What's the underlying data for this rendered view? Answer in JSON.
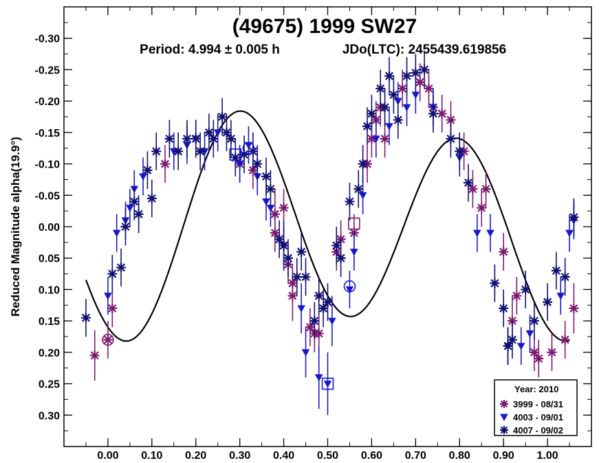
{
  "chart_data": {
    "type": "scatter",
    "title": "(49675) 1999 SW27",
    "subtitle_period": "Period: 4.994 ± 0.005 h",
    "subtitle_epoch": "JDo(LTC): 2455439.619856",
    "xlabel": "",
    "ylabel": "Reduced Magnitude alpha(19.9°)",
    "xlim": [
      -0.1,
      1.1
    ],
    "ylim": [
      0.35,
      -0.35
    ],
    "y_inverted": true,
    "x_ticks": [
      "0.00",
      "0.10",
      "0.20",
      "0.30",
      "0.40",
      "0.50",
      "0.60",
      "0.70",
      "0.80",
      "0.90",
      "1.00"
    ],
    "x_tick_values": [
      0.0,
      0.1,
      0.2,
      0.3,
      0.4,
      0.5,
      0.6,
      0.7,
      0.8,
      0.9,
      1.0
    ],
    "y_ticks": [
      "-0.30",
      "-0.25",
      "-0.20",
      "-0.15",
      "-0.10",
      "-0.05",
      "0.00",
      "0.05",
      "0.10",
      "0.15",
      "0.20",
      "0.25",
      "0.30"
    ],
    "y_tick_values": [
      -0.3,
      -0.25,
      -0.2,
      -0.15,
      -0.1,
      -0.05,
      0.0,
      0.05,
      0.1,
      0.15,
      0.2,
      0.25,
      0.3
    ],
    "grid": false,
    "legend_position": "bottom-right",
    "legend_title": "Year: 2010",
    "fourier_fit": {
      "color": "#000000",
      "mean": 0.0,
      "a1": 0.025,
      "b1": -0.015,
      "a2": 0.135,
      "b2": 0.09
    },
    "series": [
      {
        "name": "3999 - 08/31",
        "marker": "asterisk",
        "color": "#7b1a6e",
        "points": [
          [
            -0.03,
            0.205,
            0.04
          ],
          [
            0.0,
            0.18,
            0.03
          ],
          [
            0.01,
            0.13,
            0.03
          ],
          [
            0.13,
            -0.1,
            0.03
          ],
          [
            0.3,
            -0.1,
            0.03
          ],
          [
            0.33,
            -0.09,
            0.03
          ],
          [
            0.38,
            -0.02,
            0.04
          ],
          [
            0.38,
            0.01,
            0.03
          ],
          [
            0.4,
            -0.03,
            0.03
          ],
          [
            0.41,
            0.06,
            0.03
          ],
          [
            0.42,
            0.09,
            0.03
          ],
          [
            0.42,
            0.11,
            0.04
          ],
          [
            0.46,
            0.16,
            0.03
          ],
          [
            0.47,
            0.17,
            0.03
          ],
          [
            0.48,
            0.17,
            0.03
          ],
          [
            0.52,
            0.04,
            0.03
          ],
          [
            0.53,
            0.02,
            0.03
          ],
          [
            0.56,
            0.01,
            0.03
          ],
          [
            0.59,
            -0.1,
            0.03
          ],
          [
            0.6,
            -0.14,
            0.03
          ],
          [
            0.61,
            -0.17,
            0.03
          ],
          [
            0.62,
            -0.19,
            0.03
          ],
          [
            0.63,
            -0.14,
            0.03
          ],
          [
            0.67,
            -0.22,
            0.03
          ],
          [
            0.71,
            -0.23,
            0.03
          ],
          [
            0.73,
            -0.22,
            0.03
          ],
          [
            0.74,
            -0.19,
            0.03
          ],
          [
            0.76,
            -0.18,
            0.03
          ],
          [
            0.78,
            -0.17,
            0.03
          ],
          [
            0.81,
            -0.12,
            0.03
          ],
          [
            0.83,
            -0.06,
            0.03
          ],
          [
            0.85,
            -0.03,
            0.03
          ],
          [
            0.86,
            -0.06,
            0.03
          ],
          [
            0.9,
            0.04,
            0.03
          ],
          [
            0.92,
            0.15,
            0.04
          ],
          [
            0.93,
            0.11,
            0.03
          ],
          [
            0.97,
            0.2,
            0.03
          ],
          [
            0.98,
            0.21,
            0.03
          ],
          [
            1.01,
            0.2,
            0.03
          ],
          [
            1.04,
            0.18,
            0.03
          ],
          [
            1.06,
            0.13,
            0.04
          ]
        ]
      },
      {
        "name": "4003 - 09/01",
        "marker": "triangle-down",
        "color": "#1818c8",
        "points": [
          [
            0.0,
            0.11,
            0.03
          ],
          [
            0.02,
            0.01,
            0.03
          ],
          [
            0.04,
            -0.01,
            0.03
          ],
          [
            0.05,
            -0.03,
            0.03
          ],
          [
            0.06,
            -0.06,
            0.03
          ],
          [
            0.08,
            -0.08,
            0.03
          ],
          [
            0.15,
            -0.12,
            0.03
          ],
          [
            0.18,
            -0.13,
            0.03
          ],
          [
            0.2,
            -0.14,
            0.03
          ],
          [
            0.22,
            -0.12,
            0.03
          ],
          [
            0.25,
            -0.15,
            0.03
          ],
          [
            0.3,
            -0.1,
            0.03
          ],
          [
            0.32,
            -0.13,
            0.03
          ],
          [
            0.34,
            -0.08,
            0.03
          ],
          [
            0.36,
            -0.04,
            0.03
          ],
          [
            0.37,
            -0.03,
            0.03
          ],
          [
            0.4,
            0.03,
            0.04
          ],
          [
            0.44,
            0.13,
            0.04
          ],
          [
            0.45,
            0.2,
            0.04
          ],
          [
            0.48,
            0.24,
            0.05
          ],
          [
            0.5,
            0.25,
            0.05
          ],
          [
            0.51,
            0.15,
            0.04
          ],
          [
            0.55,
            0.1,
            0.03
          ],
          [
            0.56,
            0.04,
            0.03
          ],
          [
            0.58,
            -0.05,
            0.03
          ],
          [
            0.61,
            -0.14,
            0.03
          ],
          [
            0.64,
            -0.16,
            0.03
          ],
          [
            0.66,
            -0.2,
            0.03
          ],
          [
            0.68,
            -0.19,
            0.03
          ],
          [
            0.7,
            -0.21,
            0.03
          ],
          [
            0.74,
            -0.19,
            0.03
          ],
          [
            0.8,
            -0.11,
            0.03
          ],
          [
            0.84,
            0.01,
            0.03
          ],
          [
            0.87,
            0.01,
            0.03
          ],
          [
            0.91,
            0.19,
            0.03
          ],
          [
            0.94,
            0.19,
            0.03
          ],
          [
            0.96,
            0.17,
            0.03
          ],
          [
            1.03,
            0.11,
            0.03
          ],
          [
            1.05,
            0.01,
            0.03
          ],
          [
            1.06,
            -0.01,
            0.03
          ]
        ]
      },
      {
        "name": "4007 - 09/02",
        "marker": "asterisk",
        "color": "#101070",
        "points": [
          [
            -0.05,
            0.145,
            0.03
          ],
          [
            0.01,
            0.075,
            0.03
          ],
          [
            0.03,
            0.065,
            0.03
          ],
          [
            0.04,
            0.0,
            0.03
          ],
          [
            0.06,
            -0.04,
            0.03
          ],
          [
            0.07,
            -0.02,
            0.03
          ],
          [
            0.09,
            -0.09,
            0.03
          ],
          [
            0.1,
            -0.045,
            0.03
          ],
          [
            0.11,
            -0.12,
            0.03
          ],
          [
            0.14,
            -0.14,
            0.03
          ],
          [
            0.16,
            -0.12,
            0.03
          ],
          [
            0.18,
            -0.14,
            0.03
          ],
          [
            0.2,
            -0.14,
            0.03
          ],
          [
            0.21,
            -0.12,
            0.03
          ],
          [
            0.23,
            -0.15,
            0.03
          ],
          [
            0.24,
            -0.14,
            0.03
          ],
          [
            0.26,
            -0.175,
            0.03
          ],
          [
            0.27,
            -0.15,
            0.03
          ],
          [
            0.28,
            -0.14,
            0.03
          ],
          [
            0.29,
            -0.11,
            0.03
          ],
          [
            0.31,
            -0.115,
            0.03
          ],
          [
            0.33,
            -0.12,
            0.03
          ],
          [
            0.34,
            -0.1,
            0.03
          ],
          [
            0.36,
            -0.08,
            0.03
          ],
          [
            0.37,
            -0.06,
            0.03
          ],
          [
            0.39,
            0.02,
            0.03
          ],
          [
            0.4,
            0.03,
            0.03
          ],
          [
            0.41,
            0.05,
            0.03
          ],
          [
            0.43,
            0.08,
            0.03
          ],
          [
            0.44,
            0.04,
            0.03
          ],
          [
            0.45,
            0.08,
            0.03
          ],
          [
            0.47,
            0.15,
            0.03
          ],
          [
            0.48,
            0.11,
            0.03
          ],
          [
            0.49,
            0.13,
            0.03
          ],
          [
            0.5,
            0.12,
            0.03
          ],
          [
            0.52,
            0.03,
            0.03
          ],
          [
            0.53,
            0.05,
            0.03
          ],
          [
            0.55,
            -0.04,
            0.03
          ],
          [
            0.57,
            -0.06,
            0.03
          ],
          [
            0.58,
            -0.1,
            0.03
          ],
          [
            0.59,
            -0.16,
            0.03
          ],
          [
            0.6,
            -0.18,
            0.03
          ],
          [
            0.62,
            -0.22,
            0.03
          ],
          [
            0.63,
            -0.19,
            0.03
          ],
          [
            0.64,
            -0.24,
            0.03
          ],
          [
            0.65,
            -0.21,
            0.03
          ],
          [
            0.66,
            -0.17,
            0.03
          ],
          [
            0.68,
            -0.24,
            0.03
          ],
          [
            0.7,
            -0.245,
            0.03
          ],
          [
            0.72,
            -0.25,
            0.03
          ],
          [
            0.74,
            -0.18,
            0.03
          ],
          [
            0.78,
            -0.14,
            0.03
          ],
          [
            0.8,
            -0.12,
            0.03
          ],
          [
            0.82,
            -0.07,
            0.03
          ],
          [
            0.88,
            0.09,
            0.03
          ],
          [
            0.9,
            0.13,
            0.03
          ],
          [
            0.91,
            0.19,
            0.03
          ],
          [
            0.92,
            0.18,
            0.03
          ],
          [
            0.95,
            0.1,
            0.03
          ],
          [
            0.97,
            0.15,
            0.03
          ],
          [
            1.0,
            0.12,
            0.03
          ],
          [
            1.02,
            0.07,
            0.03
          ],
          [
            1.04,
            0.08,
            0.03
          ],
          [
            1.06,
            -0.015,
            0.03
          ]
        ]
      }
    ],
    "highlighted_points": [
      {
        "shape": "circle",
        "x": 0.0,
        "y": 0.18,
        "color": "#7b1a6e"
      },
      {
        "shape": "circle",
        "x": 0.32,
        "y": -0.125,
        "color": "#1818c8"
      },
      {
        "shape": "circle",
        "x": 0.55,
        "y": 0.095,
        "color": "#1818c8"
      },
      {
        "shape": "square",
        "x": 0.29,
        "y": -0.115,
        "color": "#1818c8"
      },
      {
        "shape": "square",
        "x": 0.5,
        "y": 0.25,
        "color": "#1818c8"
      },
      {
        "shape": "square",
        "x": 0.56,
        "y": -0.005,
        "color": "#7b1a6e"
      }
    ]
  }
}
